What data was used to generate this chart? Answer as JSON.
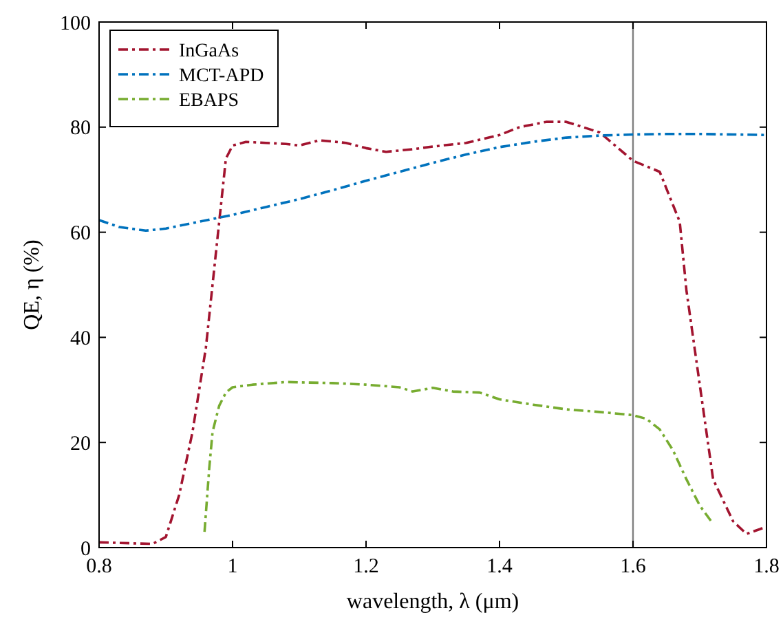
{
  "chart_data": {
    "type": "line",
    "xlabel": "wavelength, λ (μm)",
    "ylabel": "QE, η (%)",
    "xlim": [
      0.8,
      1.8
    ],
    "ylim": [
      0,
      100
    ],
    "xticks": [
      0.8,
      1,
      1.2,
      1.4,
      1.6,
      1.8
    ],
    "yticks": [
      0,
      20,
      40,
      60,
      80,
      100
    ],
    "grid": false,
    "legend": "top left",
    "line_style": "dashed",
    "marker": "none",
    "ref_lines": [
      {
        "axis": "x",
        "value": 1.6,
        "color": "#808080",
        "line_style": "solid"
      }
    ],
    "series": [
      {
        "name": "InGaAs",
        "color": "#a2142f",
        "x": [
          0.8,
          0.88,
          0.9,
          0.92,
          0.94,
          0.96,
          0.98,
          0.99,
          1.0,
          1.02,
          1.05,
          1.08,
          1.1,
          1.13,
          1.17,
          1.2,
          1.23,
          1.27,
          1.3,
          1.35,
          1.4,
          1.43,
          1.47,
          1.5,
          1.55,
          1.6,
          1.64,
          1.67,
          1.68,
          1.7,
          1.72,
          1.75,
          1.77,
          1.79,
          1.8
        ],
        "values": [
          1,
          0.7,
          2,
          10,
          22,
          38,
          62,
          74,
          76.5,
          77.2,
          77,
          76.8,
          76.5,
          77.5,
          77,
          76,
          75.3,
          75.8,
          76.3,
          77,
          78.5,
          80,
          81,
          81,
          79,
          73.6,
          71.5,
          62,
          49,
          31,
          13,
          5,
          2.6,
          3.5,
          4
        ]
      },
      {
        "name": "MCT-APD",
        "color": "#0072bd",
        "x": [
          0.8,
          0.83,
          0.87,
          0.9,
          0.95,
          1.0,
          1.05,
          1.1,
          1.15,
          1.2,
          1.25,
          1.3,
          1.35,
          1.4,
          1.45,
          1.5,
          1.55,
          1.6,
          1.65,
          1.7,
          1.75,
          1.8
        ],
        "values": [
          62.3,
          61,
          60.3,
          60.7,
          62,
          63.3,
          64.8,
          66.3,
          68,
          69.8,
          71.5,
          73.2,
          74.8,
          76.2,
          77.2,
          78,
          78.4,
          78.6,
          78.7,
          78.7,
          78.6,
          78.5
        ]
      },
      {
        "name": "EBAPS",
        "color": "#77ac30",
        "x": [
          0.958,
          0.965,
          0.97,
          0.98,
          0.99,
          1.0,
          1.03,
          1.08,
          1.15,
          1.2,
          1.25,
          1.27,
          1.3,
          1.33,
          1.37,
          1.4,
          1.45,
          1.5,
          1.55,
          1.6,
          1.62,
          1.64,
          1.66,
          1.68,
          1.7,
          1.72
        ],
        "values": [
          3,
          15,
          22,
          27,
          29.5,
          30.5,
          31,
          31.5,
          31.3,
          31,
          30.5,
          29.7,
          30.4,
          29.7,
          29.5,
          28.2,
          27.2,
          26.3,
          25.8,
          25.2,
          24.5,
          22.5,
          18.5,
          13,
          8,
          4.5
        ]
      }
    ]
  }
}
